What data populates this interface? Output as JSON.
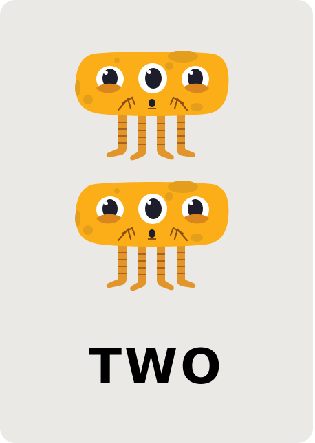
{
  "card": {
    "word": "TWO",
    "background_color": "#eae9e5",
    "count": 2
  },
  "illustration": {
    "icon": "three-eyed-orange-monster-icon",
    "body_color": "#fbae17",
    "leg_color": "#e1952a",
    "eye_color": "#1d1d2b"
  }
}
